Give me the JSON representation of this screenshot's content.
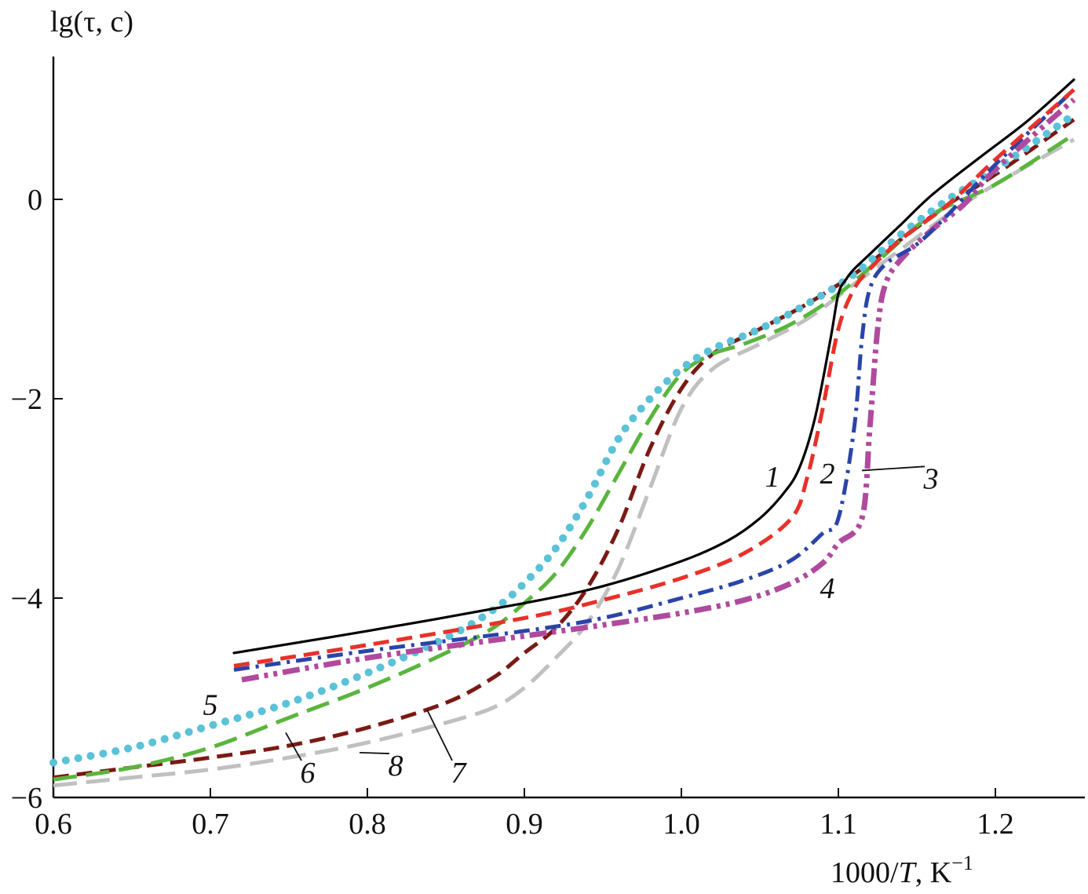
{
  "chart_data": {
    "type": "line",
    "ylabel": "lg(τ, c)",
    "xlabel_parts": [
      "1000/",
      "T",
      ", K",
      "−1"
    ],
    "xlim": [
      0.6,
      1.257
    ],
    "ylim": [
      -6,
      1.4
    ],
    "x_ticks": [
      0.6,
      0.7,
      0.8,
      0.9,
      1.0,
      1.1,
      1.2
    ],
    "x_tick_labels": [
      "0.6",
      "0.7",
      "0.8",
      "0.9",
      "1.0",
      "1.1",
      "1.2"
    ],
    "y_ticks": [
      -6,
      -4,
      -2,
      0
    ],
    "y_tick_labels": [
      "−6",
      "−4",
      "−2",
      "0"
    ],
    "grid": false,
    "series": [
      {
        "name": "1",
        "color": "#000000",
        "style": "solid",
        "x": [
          0.715,
          0.8,
          0.9,
          0.95,
          1.0,
          1.03,
          1.05,
          1.065,
          1.075,
          1.085,
          1.095,
          1.1,
          1.105,
          1.11,
          1.12,
          1.14,
          1.16,
          1.19,
          1.22,
          1.25
        ],
        "y": [
          -4.55,
          -4.33,
          -4.05,
          -3.88,
          -3.63,
          -3.42,
          -3.2,
          -2.95,
          -2.7,
          -2.2,
          -1.4,
          -0.95,
          -0.8,
          -0.7,
          -0.55,
          -0.25,
          0.05,
          0.42,
          0.78,
          1.2
        ]
      },
      {
        "name": "2",
        "color": "#e8312a",
        "style": "dash",
        "x": [
          0.715,
          0.8,
          0.9,
          0.95,
          1.0,
          1.04,
          1.07,
          1.08,
          1.09,
          1.1,
          1.11,
          1.12,
          1.14,
          1.17,
          1.2,
          1.25
        ],
        "y": [
          -4.68,
          -4.47,
          -4.2,
          -4.02,
          -3.8,
          -3.55,
          -3.2,
          -2.8,
          -2.1,
          -1.3,
          -0.9,
          -0.7,
          -0.4,
          -0.05,
          0.4,
          1.1
        ]
      },
      {
        "name": "3",
        "color": "#2a44a8",
        "style": "dashdot",
        "x": [
          0.715,
          0.8,
          0.9,
          0.95,
          1.0,
          1.04,
          1.07,
          1.09,
          1.1,
          1.11,
          1.115,
          1.12,
          1.13,
          1.15,
          1.17,
          1.2,
          1.25
        ],
        "y": [
          -4.72,
          -4.53,
          -4.33,
          -4.2,
          -4.0,
          -3.82,
          -3.62,
          -3.35,
          -3.2,
          -2.3,
          -1.4,
          -0.9,
          -0.65,
          -0.45,
          -0.15,
          0.35,
          1.1
        ]
      },
      {
        "name": "4",
        "color": "#b04a9e",
        "style": "dashdotdot",
        "x": [
          0.72,
          0.8,
          0.9,
          0.95,
          1.0,
          1.04,
          1.07,
          1.09,
          1.1,
          1.115,
          1.12,
          1.125,
          1.13,
          1.14,
          1.16,
          1.18,
          1.2,
          1.25
        ],
        "y": [
          -4.82,
          -4.6,
          -4.38,
          -4.27,
          -4.15,
          -4.02,
          -3.85,
          -3.65,
          -3.45,
          -3.2,
          -2.3,
          -1.3,
          -0.85,
          -0.6,
          -0.3,
          -0.05,
          0.3,
          1.0
        ]
      },
      {
        "name": "5",
        "color": "#5bc2d8",
        "style": "dots",
        "x": [
          0.6,
          0.65,
          0.7,
          0.75,
          0.8,
          0.85,
          0.88,
          0.9,
          0.92,
          0.94,
          0.96,
          0.98,
          1.0,
          1.02,
          1.05,
          1.08,
          1.11,
          1.14,
          1.17,
          1.2,
          1.25
        ],
        "y": [
          -5.65,
          -5.5,
          -5.28,
          -5.05,
          -4.75,
          -4.4,
          -4.12,
          -3.85,
          -3.5,
          -3.0,
          -2.4,
          -2.0,
          -1.7,
          -1.5,
          -1.3,
          -1.05,
          -0.75,
          -0.35,
          0.0,
          0.3,
          0.85
        ]
      },
      {
        "name": "6",
        "color": "#5ab53d",
        "style": "longdash",
        "x": [
          0.6,
          0.65,
          0.7,
          0.75,
          0.8,
          0.85,
          0.88,
          0.9,
          0.92,
          0.94,
          0.96,
          0.98,
          1.0,
          1.02,
          1.04,
          1.07,
          1.1,
          1.13,
          1.16,
          1.2,
          1.25
        ],
        "y": [
          -5.82,
          -5.7,
          -5.5,
          -5.2,
          -4.9,
          -4.55,
          -4.3,
          -4.05,
          -3.75,
          -3.3,
          -2.75,
          -2.2,
          -1.75,
          -1.55,
          -1.45,
          -1.25,
          -0.95,
          -0.55,
          -0.15,
          0.15,
          0.65
        ]
      },
      {
        "name": "7",
        "color": "#7a1a14",
        "style": "dash",
        "x": [
          0.6,
          0.65,
          0.7,
          0.75,
          0.8,
          0.85,
          0.88,
          0.9,
          0.92,
          0.94,
          0.96,
          0.98,
          1.0,
          1.02,
          1.05,
          1.08,
          1.11,
          1.14,
          1.17,
          1.2,
          1.25
        ],
        "y": [
          -5.8,
          -5.7,
          -5.6,
          -5.48,
          -5.3,
          -5.05,
          -4.8,
          -4.55,
          -4.3,
          -3.9,
          -3.3,
          -2.5,
          -1.9,
          -1.55,
          -1.3,
          -1.05,
          -0.75,
          -0.4,
          -0.05,
          0.25,
          0.8
        ]
      },
      {
        "name": "8",
        "color": "#c0c0c0",
        "style": "longdash",
        "x": [
          0.6,
          0.65,
          0.7,
          0.75,
          0.8,
          0.85,
          0.88,
          0.9,
          0.92,
          0.94,
          0.96,
          0.98,
          1.0,
          1.02,
          1.05,
          1.08,
          1.11,
          1.14,
          1.17,
          1.2,
          1.25
        ],
        "y": [
          -5.88,
          -5.8,
          -5.72,
          -5.6,
          -5.45,
          -5.25,
          -5.1,
          -4.9,
          -4.6,
          -4.25,
          -3.7,
          -2.9,
          -2.1,
          -1.7,
          -1.45,
          -1.2,
          -0.85,
          -0.5,
          -0.15,
          0.15,
          0.6
        ]
      }
    ],
    "labels": [
      {
        "text": "1",
        "series": "1",
        "x": 1.058,
        "y": -2.88
      },
      {
        "text": "2",
        "series": "2",
        "x": 1.093,
        "y": -2.85
      },
      {
        "text": "3",
        "series": "3",
        "x": 1.159,
        "y": -2.9,
        "leader_to": {
          "x": 1.115,
          "y": -2.72
        }
      },
      {
        "text": "4",
        "series": "4",
        "x": 1.093,
        "y": -4.0
      },
      {
        "text": "5",
        "series": "5",
        "x": 0.7,
        "y": -5.17
      },
      {
        "text": "6",
        "series": "6",
        "x": 0.762,
        "y": -5.85,
        "leader_to": {
          "x": 0.748,
          "y": -5.35
        }
      },
      {
        "text": "7",
        "series": "7",
        "x": 0.858,
        "y": -5.85,
        "leader_to": {
          "x": 0.838,
          "y": -5.12
        }
      },
      {
        "text": "8",
        "series": "8",
        "x": 0.818,
        "y": -5.78,
        "leader_to": {
          "x": 0.795,
          "y": -5.55
        }
      }
    ]
  }
}
